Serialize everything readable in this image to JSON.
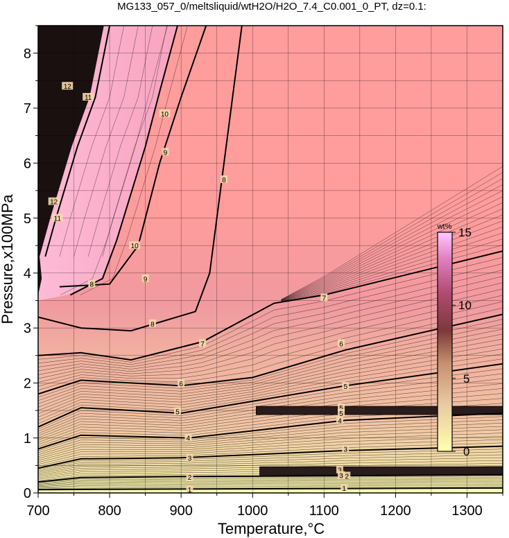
{
  "chart_data": {
    "type": "heatmap",
    "title": "MG133_057_0/meltsliquid/wtH2O/H2O_7.4_C0.001_0_PT, dz=0.1:",
    "xlabel": "Temperature,°C",
    "ylabel": "Pressure,x100MPa",
    "xlim": [
      700,
      1350
    ],
    "ylim": [
      0,
      8.5
    ],
    "x_ticks": [
      "700",
      "800",
      "900",
      "1000",
      "1100",
      "1200",
      "1300"
    ],
    "y_ticks": [
      "0",
      "1",
      "2",
      "3",
      "4",
      "5",
      "6",
      "7",
      "8"
    ],
    "grid": true,
    "colorbar": {
      "title": "wt%",
      "range": [
        0,
        15
      ],
      "ticks": [
        "0",
        "5",
        "10",
        "15"
      ],
      "colors": [
        "#ffffb0",
        "#e8c8a0",
        "#c89070",
        "#7a3a3a",
        "#b04a70",
        "#e080c0",
        "#ffc8ff"
      ]
    },
    "contours": [
      {
        "label": "1",
        "points": [
          [
            700,
            0.06
          ],
          [
            900,
            0.07
          ],
          [
            1100,
            0.08
          ],
          [
            1350,
            0.09
          ]
        ]
      },
      {
        "label": "2",
        "points": [
          [
            700,
            0.2
          ],
          [
            760,
            0.28
          ],
          [
            900,
            0.3
          ],
          [
            1100,
            0.31
          ],
          [
            1350,
            0.33
          ]
        ]
      },
      {
        "label": "3",
        "points": [
          [
            700,
            0.45
          ],
          [
            760,
            0.62
          ],
          [
            900,
            0.64
          ],
          [
            1130,
            0.77
          ],
          [
            1350,
            0.85
          ]
        ]
      },
      {
        "label": "4",
        "points": [
          [
            700,
            0.8
          ],
          [
            760,
            1.05
          ],
          [
            910,
            1.0
          ],
          [
            1130,
            1.32
          ],
          [
            1350,
            1.45
          ]
        ]
      },
      {
        "label": "5",
        "points": [
          [
            700,
            1.2
          ],
          [
            760,
            1.55
          ],
          [
            900,
            1.45
          ],
          [
            1130,
            1.95
          ],
          [
            1350,
            2.35
          ]
        ]
      },
      {
        "label": "6",
        "points": [
          [
            700,
            1.8
          ],
          [
            760,
            2.05
          ],
          [
            900,
            1.95
          ],
          [
            1000,
            2.1
          ],
          [
            1130,
            2.6
          ],
          [
            1350,
            3.25
          ]
        ]
      },
      {
        "label": "7",
        "points": [
          [
            700,
            2.5
          ],
          [
            760,
            2.55
          ],
          [
            830,
            2.42
          ],
          [
            930,
            2.75
          ],
          [
            1030,
            3.45
          ],
          [
            1100,
            3.6
          ],
          [
            1350,
            4.4
          ]
        ]
      },
      {
        "label": "8",
        "points": [
          [
            700,
            3.2
          ],
          [
            760,
            3.0
          ],
          [
            830,
            2.95
          ],
          [
            920,
            3.3
          ],
          [
            940,
            4.0
          ],
          [
            960,
            6.0
          ],
          [
            985,
            8.5
          ]
        ]
      },
      {
        "label": "9",
        "points": [
          [
            730,
            3.75
          ],
          [
            800,
            3.8
          ],
          [
            840,
            4.5
          ],
          [
            870,
            6.0
          ],
          [
            900,
            7.2
          ],
          [
            935,
            8.5
          ]
        ]
      },
      {
        "label": "10",
        "points": [
          [
            745,
            3.6
          ],
          [
            790,
            3.9
          ],
          [
            810,
            4.6
          ],
          [
            850,
            6.3
          ],
          [
            870,
            7.3
          ],
          [
            895,
            8.5
          ]
        ]
      },
      {
        "label": "11",
        "points": [
          [
            710,
            4.3
          ],
          [
            725,
            5.0
          ],
          [
            755,
            6.3
          ],
          [
            780,
            7.2
          ],
          [
            800,
            8.5
          ]
        ]
      }
    ],
    "contour_labels": [
      {
        "text": "1",
        "x": 912,
        "y": 0.06
      },
      {
        "text": "1",
        "x": 1128,
        "y": 0.09
      },
      {
        "text": "2",
        "x": 912,
        "y": 0.29
      },
      {
        "text": "2",
        "x": 1132,
        "y": 0.31
      },
      {
        "text": "3",
        "x": 912,
        "y": 0.64
      },
      {
        "text": "3",
        "x": 1130,
        "y": 0.8
      },
      {
        "text": "3",
        "x": 1122,
        "y": 0.42
      },
      {
        "text": "3",
        "x": 1124,
        "y": 0.32
      },
      {
        "text": "4",
        "x": 910,
        "y": 1.0
      },
      {
        "text": "4",
        "x": 1122,
        "y": 1.32
      },
      {
        "text": "5",
        "x": 895,
        "y": 1.48
      },
      {
        "text": "5",
        "x": 1130,
        "y": 1.94
      },
      {
        "text": "5",
        "x": 1124,
        "y": 1.55
      },
      {
        "text": "5",
        "x": 1124,
        "y": 1.45
      },
      {
        "text": "6",
        "x": 900,
        "y": 1.99
      },
      {
        "text": "6",
        "x": 1124,
        "y": 2.72
      },
      {
        "text": "7",
        "x": 930,
        "y": 2.72
      },
      {
        "text": "7",
        "x": 1100,
        "y": 3.55
      },
      {
        "text": "8",
        "x": 860,
        "y": 3.08
      },
      {
        "text": "8",
        "x": 960,
        "y": 5.7
      },
      {
        "text": "8",
        "x": 775,
        "y": 3.8
      },
      {
        "text": "9",
        "x": 850,
        "y": 3.9
      },
      {
        "text": "9",
        "x": 878,
        "y": 6.2
      },
      {
        "text": "10",
        "x": 835,
        "y": 4.5
      },
      {
        "text": "10",
        "x": 877,
        "y": 6.9
      },
      {
        "text": "11",
        "x": 727,
        "y": 5.0
      },
      {
        "text": "11",
        "x": 770,
        "y": 7.2
      },
      {
        "text": "12",
        "x": 722,
        "y": 5.3
      },
      {
        "text": "12",
        "x": 741,
        "y": 7.4
      }
    ],
    "bands": [
      {
        "t_start": 1005,
        "t_end": 1350,
        "p_center": 1.5
      },
      {
        "t_start": 1010,
        "t_end": 1350,
        "p_center": 0.4
      }
    ]
  }
}
